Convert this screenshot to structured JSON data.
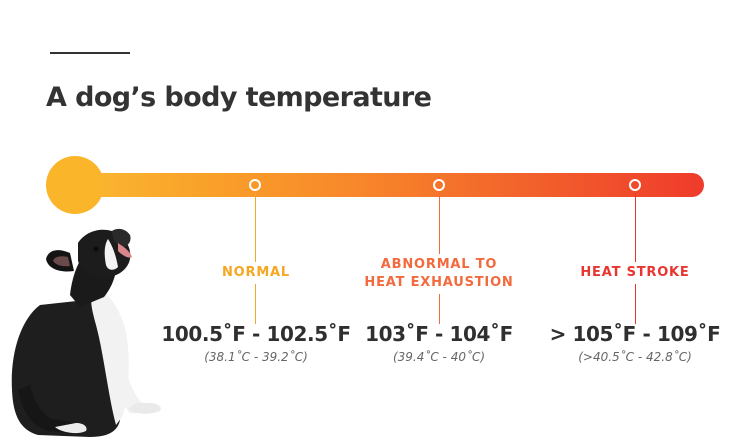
{
  "title": "A dog’s body temperature",
  "colors": {
    "bulb": "#fbb52b",
    "gradient_start": "#fbb931",
    "gradient_end": "#ef3b2c",
    "normal": "#f5a623",
    "abnormal": "#f26a3d",
    "heat_stroke": "#e8352f"
  },
  "zones": [
    {
      "label_lines": [
        "NORMAL"
      ],
      "fahrenheit": "100.5˚F - 102.5˚F",
      "celsius": "(38.1˚C - 39.2˚C)"
    },
    {
      "label_lines": [
        "ABNORMAL TO",
        "HEAT EXHAUSTION"
      ],
      "fahrenheit": "103˚F - 104˚F",
      "celsius": "(39.4˚C - 40˚C)"
    },
    {
      "label_lines": [
        "HEAT STROKE"
      ],
      "fahrenheit": "> 105˚F - 109˚F",
      "celsius": "(>40.5˚C - 42.8˚C)"
    }
  ],
  "illustration": "french-bulldog-looking-up"
}
